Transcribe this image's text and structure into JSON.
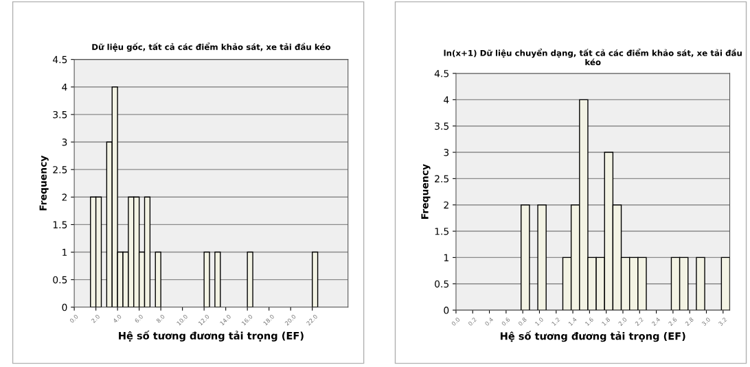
{
  "chart_data": [
    {
      "type": "histogram",
      "title": "Dữ liệu gốc, tất cả các điểm khảo sát, xe tải đầu kéo",
      "xlabel": "Hệ số tương đương tải trọng (EF)",
      "ylabel": "Frequency",
      "bins": [
        1.5,
        2.0,
        2.5,
        3.0,
        3.5,
        4.0,
        4.5,
        5.0,
        5.5,
        6.0,
        6.5,
        7.0,
        7.5,
        8.0,
        8.5,
        9.0,
        9.5,
        10.0,
        10.5,
        11.0,
        11.5,
        12.0,
        12.5,
        13.0,
        13.5,
        14.0,
        14.5,
        15.0,
        15.5,
        16.0,
        16.5,
        17.0,
        17.5,
        18.0,
        18.5,
        19.0,
        19.5,
        20.0,
        20.5,
        21.0,
        21.5,
        22.0,
        22.5
      ],
      "values": [
        2,
        2,
        0,
        3,
        4,
        1,
        1,
        2,
        2,
        1,
        2,
        0,
        1,
        0,
        0,
        0,
        0,
        0,
        0,
        0,
        0,
        1,
        0,
        1,
        0,
        0,
        0,
        0,
        0,
        1,
        0,
        0,
        0,
        0,
        0,
        0,
        0,
        0,
        0,
        0,
        0,
        1
      ],
      "color": "#f3f3e4",
      "xlim": [
        0,
        25.3
      ],
      "xticks": [
        {
          "value": 0,
          "label": "0.0"
        },
        {
          "value": 2,
          "label": "2.0"
        },
        {
          "value": 4,
          "label": "4.0"
        },
        {
          "value": 6,
          "label": "6.0"
        },
        {
          "value": 8,
          "label": "8.0"
        },
        {
          "value": 10,
          "label": "10.0"
        },
        {
          "value": 12,
          "label": "12.0"
        },
        {
          "value": 14,
          "label": "14.0"
        },
        {
          "value": 16,
          "label": "16.0"
        },
        {
          "value": 18,
          "label": "18.0"
        },
        {
          "value": 20,
          "label": "20.0"
        },
        {
          "value": 22,
          "label": "22.0"
        }
      ],
      "ylim": [
        0,
        4.5
      ],
      "yticks": [
        0,
        0.5,
        1,
        1.5,
        2,
        2.5,
        3,
        3.5,
        4,
        4.5
      ],
      "grid": "y"
    },
    {
      "type": "histogram",
      "title": "ln(x+1) Dữ liệu chuyển dạng, tất cả các điểm khảo sát, xe tải đầu kéo",
      "xlabel": "Hệ số tương đương tải trọng (EF)",
      "ylabel": "Frequency",
      "bins": [
        0.78,
        0.88,
        0.98,
        1.08,
        1.18,
        1.28,
        1.38,
        1.48,
        1.58,
        1.68,
        1.78,
        1.88,
        1.98,
        2.08,
        2.18,
        2.28,
        2.38,
        2.48,
        2.58,
        2.68,
        2.78,
        2.88,
        2.98,
        3.08,
        3.18,
        3.28
      ],
      "values": [
        2,
        0,
        2,
        0,
        0,
        1,
        2,
        4,
        1,
        1,
        3,
        2,
        1,
        1,
        1,
        0,
        0,
        0,
        1,
        1,
        0,
        1,
        0,
        0,
        1
      ],
      "color": "#f3f3e4",
      "xlim": [
        0,
        3.28
      ],
      "xticks": [
        {
          "value": 0,
          "label": "0.0"
        },
        {
          "value": 0.2,
          "label": "0.2"
        },
        {
          "value": 0.4,
          "label": "0.4"
        },
        {
          "value": 0.6,
          "label": "0.6"
        },
        {
          "value": 0.8,
          "label": "0.8"
        },
        {
          "value": 1.0,
          "label": "1.0"
        },
        {
          "value": 1.2,
          "label": "1.2"
        },
        {
          "value": 1.4,
          "label": "1.4"
        },
        {
          "value": 1.6,
          "label": "1.6"
        },
        {
          "value": 1.8,
          "label": "1.8"
        },
        {
          "value": 2.0,
          "label": "2.0"
        },
        {
          "value": 2.2,
          "label": "2.2"
        },
        {
          "value": 2.4,
          "label": "2.4"
        },
        {
          "value": 2.6,
          "label": "2.6"
        },
        {
          "value": 2.8,
          "label": "2.8"
        },
        {
          "value": 3.0,
          "label": "3.0"
        },
        {
          "value": 3.2,
          "label": "3.2"
        }
      ],
      "ylim": [
        0,
        4.5
      ],
      "yticks": [
        0,
        0.5,
        1,
        1.5,
        2,
        2.5,
        3,
        3.5,
        4,
        4.5
      ],
      "grid": "y"
    }
  ]
}
